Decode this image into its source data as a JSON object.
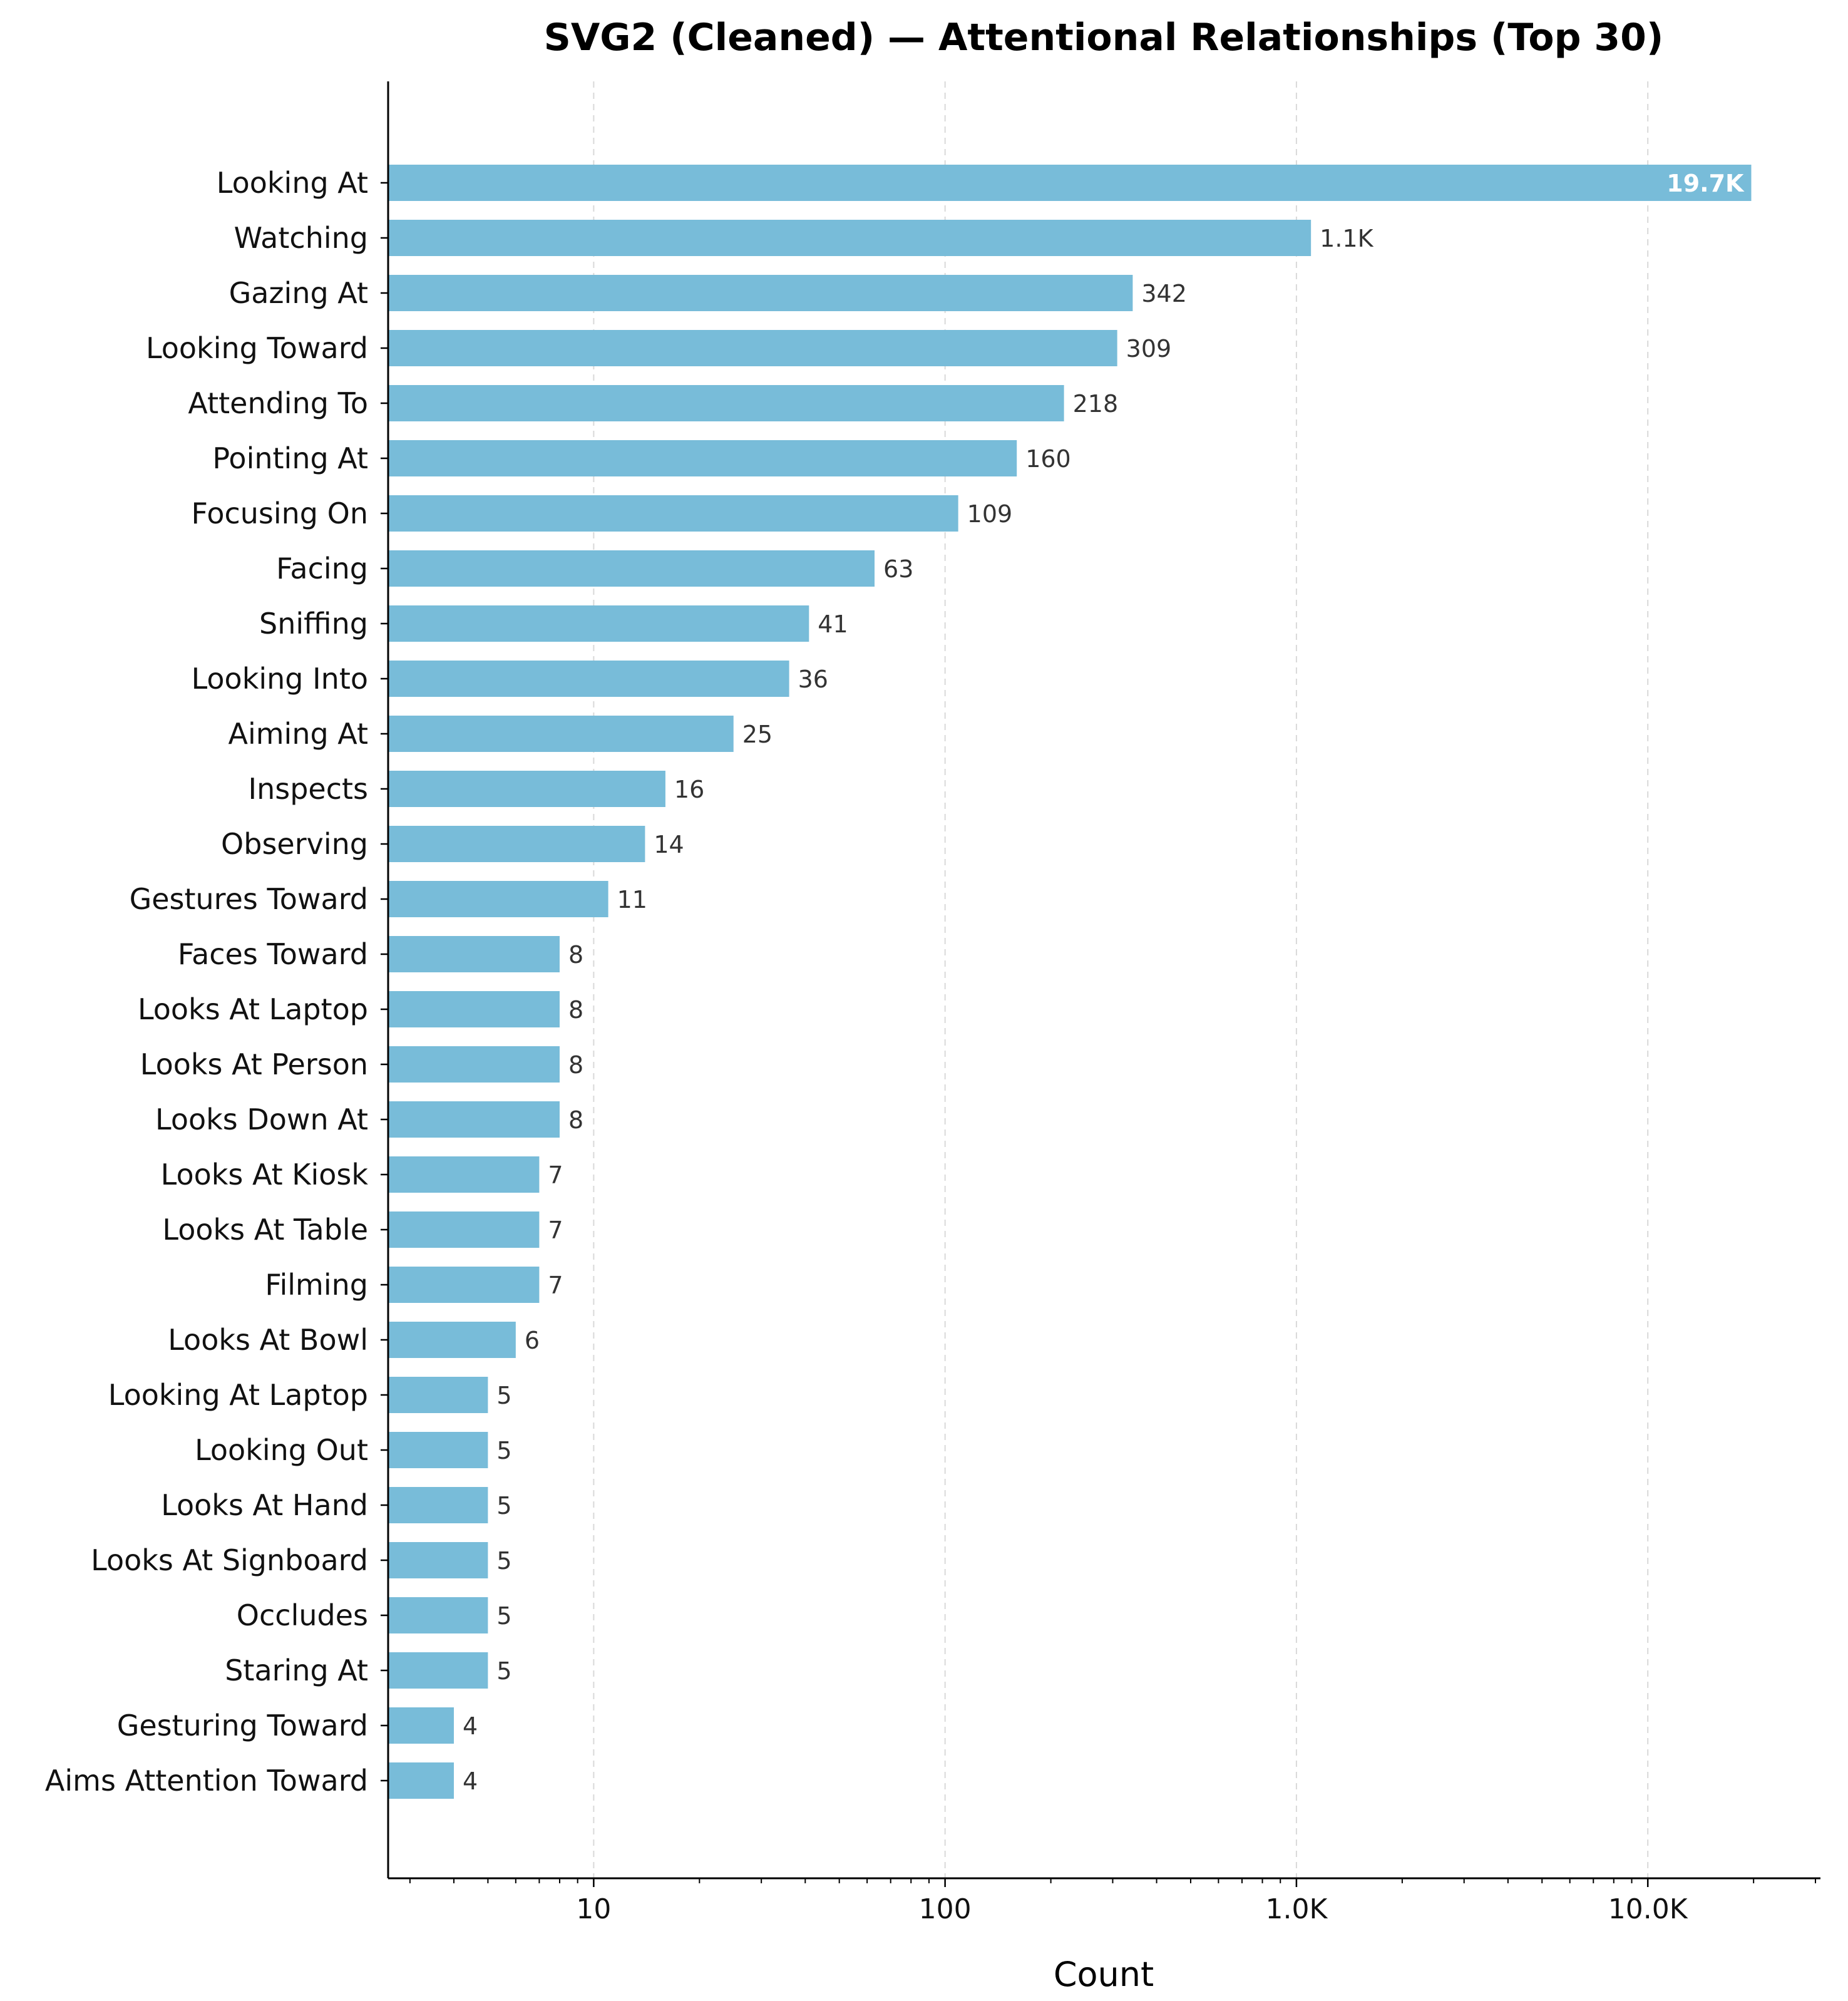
{
  "chart_data": {
    "type": "bar",
    "orientation": "horizontal",
    "title": "SVG2 (Cleaned) — Attentional Relationships (Top 30)",
    "xlabel": "Count",
    "ylabel": "",
    "xscale": "log",
    "xlim": [
      2.6,
      31000
    ],
    "grid": "x-major-dashed",
    "bar_color": "#78bcd9",
    "xticks": [
      {
        "value": 10,
        "label": "10"
      },
      {
        "value": 100,
        "label": "100"
      },
      {
        "value": 1000,
        "label": "1.0K"
      },
      {
        "value": 10000,
        "label": "10.0K"
      }
    ],
    "categories": [
      "Looking At",
      "Watching",
      "Gazing At",
      "Looking Toward",
      "Attending To",
      "Pointing At",
      "Focusing On",
      "Facing",
      "Sniffing",
      "Looking Into",
      "Aiming At",
      "Inspects",
      "Observing",
      "Gestures Toward",
      "Faces Toward",
      "Looks At Laptop",
      "Looks At Person",
      "Looks Down At",
      "Looks At Kiosk",
      "Looks At Table",
      "Filming",
      "Looks At Bowl",
      "Looking At Laptop",
      "Looking Out",
      "Looks At Hand",
      "Looks At Signboard",
      "Occludes",
      "Staring At",
      "Gesturing Toward",
      "Aims Attention Toward"
    ],
    "values": [
      19700,
      1100,
      342,
      309,
      218,
      160,
      109,
      63,
      41,
      36,
      25,
      16,
      14,
      11,
      8,
      8,
      8,
      8,
      7,
      7,
      7,
      6,
      5,
      5,
      5,
      5,
      5,
      5,
      4,
      4
    ],
    "value_labels": [
      "19.7K",
      "1.1K",
      "342",
      "309",
      "218",
      "160",
      "109",
      "63",
      "41",
      "36",
      "25",
      "16",
      "14",
      "11",
      "8",
      "8",
      "8",
      "8",
      "7",
      "7",
      "7",
      "6",
      "5",
      "5",
      "5",
      "5",
      "5",
      "5",
      "4",
      "4"
    ]
  }
}
